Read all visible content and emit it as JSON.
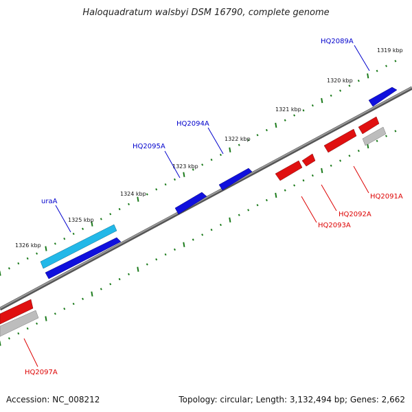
{
  "title": "Haloquadratum walsbyi DSM 16790, complete genome",
  "footer": {
    "accession": "Accession: NC_008212",
    "summary": "Topology: circular; Length: 3,132,494 bp; Genes: 2,662"
  },
  "colors": {
    "forward_gene": "#1010dd",
    "highlight_gene": "#22b8e8",
    "reverse_gene": "#e01010",
    "other_feature": "#bdbdbd",
    "forward_label": "#0000cc",
    "reverse_label": "#dd0000",
    "tick": "#1a7a1a",
    "backbone": "#777777"
  },
  "ticks": [
    {
      "label": "1319 kbp",
      "kbp": 1319
    },
    {
      "label": "1320 kbp",
      "kbp": 1320
    },
    {
      "label": "1321 kbp",
      "kbp": 1321
    },
    {
      "label": "1322 kbp",
      "kbp": 1322
    },
    {
      "label": "1323 kbp",
      "kbp": 1323
    },
    {
      "label": "1324 kbp",
      "kbp": 1324
    },
    {
      "label": "1325 kbp",
      "kbp": 1325
    },
    {
      "label": "1326 kbp",
      "kbp": 1326
    }
  ],
  "genes": [
    {
      "label": "HQ2089A",
      "strand": "forward",
      "color": "forward"
    },
    {
      "label": "HQ2094A",
      "strand": "forward",
      "color": "forward"
    },
    {
      "label": "HQ2095A",
      "strand": "forward",
      "color": "forward"
    },
    {
      "label": "uraA",
      "strand": "forward",
      "color": "highlight"
    },
    {
      "label": "HQ2091A",
      "strand": "reverse",
      "color": "reverse"
    },
    {
      "label": "HQ2092A",
      "strand": "reverse",
      "color": "reverse"
    },
    {
      "label": "HQ2093A",
      "strand": "reverse",
      "color": "reverse"
    },
    {
      "label": "HQ2097A",
      "strand": "reverse",
      "color": "reverse"
    }
  ]
}
